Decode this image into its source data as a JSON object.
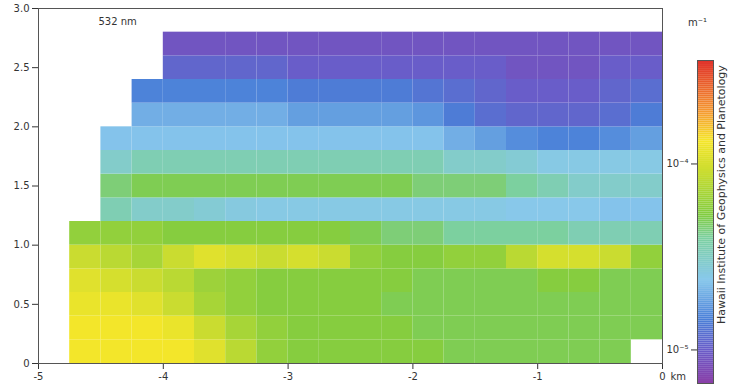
{
  "chart_data": {
    "type": "heatmap",
    "annotation": "532 nm",
    "xlabel": "km",
    "xlim": [
      -5,
      0
    ],
    "xticks": [
      -5,
      -4,
      -3,
      -2,
      -1,
      0
    ],
    "ylim": [
      0,
      3
    ],
    "yticks": [
      0,
      0.5,
      {
        "value": 1,
        "label": "1.0"
      },
      1.5,
      {
        "value": 2,
        "label": "2.0"
      },
      2.5,
      {
        "value": 3,
        "label": "3.0"
      }
    ],
    "x_edges": [
      -5,
      -4.75,
      -4.5,
      -4.25,
      -4,
      -3.75,
      -3.5,
      -3.25,
      -3,
      -2.75,
      -2.5,
      -2.25,
      -2,
      -1.75,
      -1.5,
      -1.25,
      -1,
      -0.75,
      -0.5,
      -0.25,
      0
    ],
    "y_edges": [
      0,
      0.2,
      0.4,
      0.6,
      0.8,
      1,
      1.2,
      1.4,
      1.6,
      1.8,
      2,
      2.2,
      2.4,
      2.6,
      2.8
    ],
    "values": [
      [
        null,
        0.00013,
        0.00013,
        0.00013,
        0.00013,
        0.00011,
        8e-05,
        6e-05,
        5.5e-05,
        5.5e-05,
        5.5e-05,
        5.5e-05,
        5.5e-05,
        5e-05,
        5e-05,
        5e-05,
        5e-05,
        5e-05,
        5e-05,
        null
      ],
      [
        null,
        0.00013,
        0.00013,
        0.00013,
        0.00012,
        9e-05,
        7e-05,
        6e-05,
        5.5e-05,
        5.5e-05,
        5.5e-05,
        5.5e-05,
        5e-05,
        5e-05,
        5e-05,
        5e-05,
        5e-05,
        5e-05,
        5e-05,
        5e-05
      ],
      [
        null,
        0.00012,
        0.00012,
        0.00011,
        9e-05,
        7e-05,
        6e-05,
        5.5e-05,
        5.5e-05,
        5.5e-05,
        5.5e-05,
        5e-05,
        5e-05,
        5e-05,
        5e-05,
        5e-05,
        5e-05,
        5e-05,
        5e-05,
        5e-05
      ],
      [
        null,
        0.00011,
        0.0001,
        9e-05,
        8e-05,
        6.5e-05,
        6e-05,
        5.5e-05,
        5.5e-05,
        5.5e-05,
        5.5e-05,
        5.5e-05,
        5e-05,
        5e-05,
        5e-05,
        5e-05,
        5.5e-05,
        5.5e-05,
        5e-05,
        5e-05
      ],
      [
        null,
        9e-05,
        8e-05,
        7e-05,
        9e-05,
        0.00011,
        0.0001,
        9e-05,
        0.0001,
        9e-05,
        6e-05,
        5.5e-05,
        5.5e-05,
        6e-05,
        6e-05,
        8e-05,
        0.0001,
        0.0001,
        9e-05,
        6e-05
      ],
      [
        null,
        6e-05,
        6e-05,
        6e-05,
        5.5e-05,
        5.5e-05,
        5.5e-05,
        5.5e-05,
        5.5e-05,
        5.5e-05,
        5e-05,
        4.5e-05,
        4.5e-05,
        4e-05,
        4e-05,
        4e-05,
        4e-05,
        3.5e-05,
        3.5e-05,
        3.5e-05
      ],
      [
        null,
        null,
        3.5e-05,
        3e-05,
        3e-05,
        2.8e-05,
        2.6e-05,
        2.5e-05,
        2.5e-05,
        2.5e-05,
        2.5e-05,
        2.5e-05,
        2.5e-05,
        2.5e-05,
        2.5e-05,
        2.4e-05,
        2.4e-05,
        2.4e-05,
        2.3e-05,
        2.3e-05
      ],
      [
        null,
        null,
        4.5e-05,
        5e-05,
        5e-05,
        5e-05,
        5e-05,
        5e-05,
        5e-05,
        5e-05,
        5e-05,
        5e-05,
        4.5e-05,
        4.5e-05,
        4.5e-05,
        4e-05,
        3.5e-05,
        3e-05,
        3e-05,
        3e-05
      ],
      [
        null,
        null,
        3e-05,
        3.5e-05,
        3.5e-05,
        3.5e-05,
        3.5e-05,
        3.5e-05,
        3.5e-05,
        3.5e-05,
        3.5e-05,
        3.5e-05,
        3.5e-05,
        3e-05,
        3e-05,
        2.8e-05,
        2.5e-05,
        2.5e-05,
        2.5e-05,
        2.5e-05
      ],
      [
        null,
        null,
        2.3e-05,
        2.3e-05,
        2.3e-05,
        2.3e-05,
        2.3e-05,
        2.3e-05,
        2.3e-05,
        2.3e-05,
        2.3e-05,
        2.3e-05,
        2.3e-05,
        2e-05,
        1.8e-05,
        1.6e-05,
        1.5e-05,
        1.5e-05,
        1.6e-05,
        1.8e-05
      ],
      [
        null,
        null,
        null,
        2e-05,
        2e-05,
        2e-05,
        2e-05,
        2e-05,
        1.8e-05,
        1.8e-05,
        1.8e-05,
        1.8e-05,
        1.7e-05,
        1.4e-05,
        1.2e-05,
        1.1e-05,
        1.1e-05,
        1.1e-05,
        1.2e-05,
        1.4e-05
      ],
      [
        null,
        null,
        null,
        1.5e-05,
        1.5e-05,
        1.5e-05,
        1.5e-05,
        1.5e-05,
        1.4e-05,
        1.4e-05,
        1.4e-05,
        1.4e-05,
        1.3e-05,
        1.2e-05,
        1.1e-05,
        1e-05,
        1e-05,
        1e-05,
        1.1e-05,
        1.2e-05
      ],
      [
        null,
        null,
        null,
        null,
        1.1e-05,
        1.1e-05,
        1.1e-05,
        1.1e-05,
        1e-05,
        1e-05,
        1e-05,
        1e-05,
        1e-05,
        1e-05,
        1e-05,
        9e-06,
        9e-06,
        9e-06,
        1e-05,
        1e-05
      ],
      [
        null,
        null,
        null,
        null,
        9e-06,
        9e-06,
        9e-06,
        9e-06,
        9e-06,
        9e-06,
        9e-06,
        9e-06,
        9e-06,
        9e-06,
        9e-06,
        9e-06,
        9e-06,
        9e-06,
        9e-06,
        9e-06
      ]
    ],
    "colorbar": {
      "label": "m⁻¹",
      "log": true,
      "lim": [
        6.6e-06,
        0.00036
      ],
      "ticks": [
        {
          "value": 1e-05,
          "label": "10⁻⁵"
        },
        {
          "value": 0.0001,
          "label": "10⁻⁴"
        }
      ]
    },
    "credit": "Hawaii Institute of Geophysics and Planetology"
  }
}
